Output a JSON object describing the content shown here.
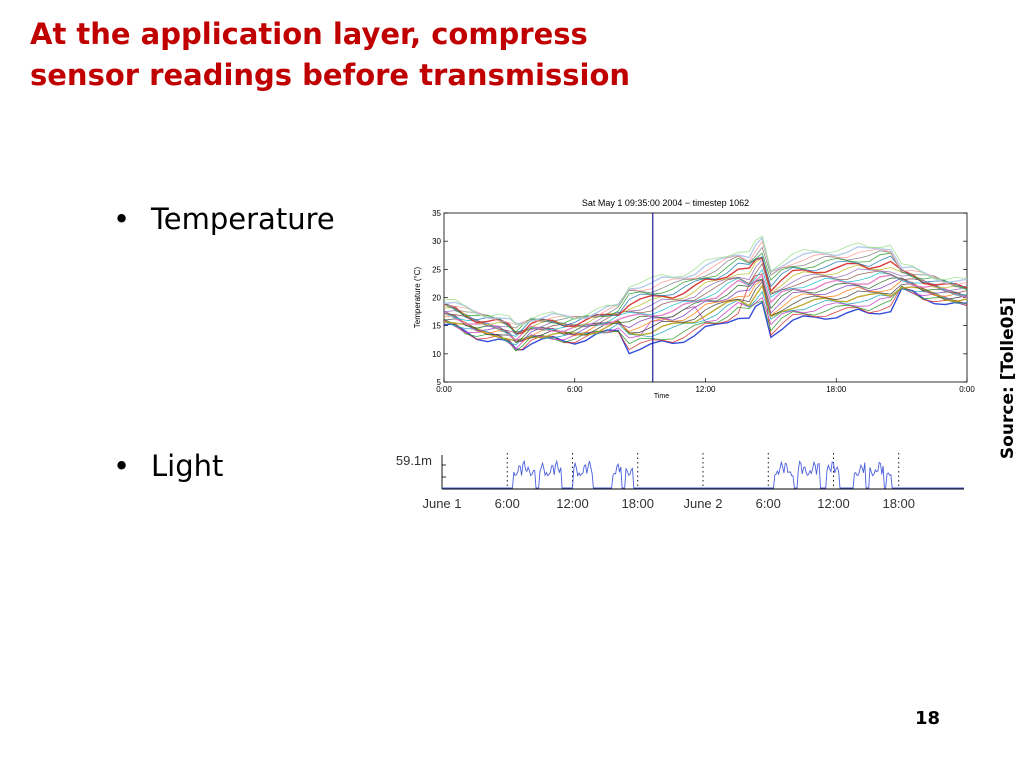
{
  "slide": {
    "title_line1": "At the application layer, compress",
    "title_line2": "sensor readings before transmission",
    "bullets": [
      "Temperature",
      "Light"
    ],
    "bullet_symbol": "•",
    "source": "Source: [Tolle05]",
    "page_number": "18",
    "title_color": "#c00000"
  },
  "chart_data": [
    {
      "type": "line",
      "title": "Sat May  1 09:35:00 2004 − timestep 1062",
      "ylabel": "Temperature (°C)",
      "xlabel": "Time",
      "x_ticks": [
        "0:00",
        "6:00",
        "12:00",
        "18:00",
        "0:00"
      ],
      "xlim_hours": [
        0,
        24
      ],
      "y_ticks": [
        5,
        10,
        15,
        20,
        25,
        30,
        35
      ],
      "ylim": [
        5,
        35
      ],
      "cursor_time_hours": 9.58,
      "x_hours": [
        0,
        0.5,
        1,
        1.5,
        2,
        2.5,
        3,
        3.3,
        3.6,
        4,
        4.5,
        5,
        5.5,
        6,
        6.5,
        7,
        7.5,
        8,
        8.5,
        9,
        9.5,
        10,
        10.5,
        11,
        11.5,
        12,
        12.5,
        13,
        13.5,
        14,
        14.3,
        14.6,
        15,
        15.5,
        16,
        16.5,
        17,
        17.5,
        18,
        18.5,
        19,
        19.5,
        20,
        20.5,
        21,
        21.5,
        22,
        22.5,
        23,
        23.5,
        24
      ],
      "base_series": [
        17.5,
        17.0,
        16.0,
        15.3,
        15.0,
        14.8,
        14.0,
        13.0,
        13.5,
        14.5,
        14.7,
        14.8,
        14.5,
        14.6,
        15.0,
        15.5,
        16.0,
        16.5,
        16.8,
        17.2,
        17.5,
        18.0,
        18.2,
        18.8,
        19.5,
        20.5,
        21.0,
        22.0,
        23.0,
        22.5,
        24.0,
        25.0,
        19.5,
        21.0,
        22.0,
        22.3,
        22.5,
        22.8,
        23.0,
        23.2,
        23.5,
        23.3,
        23.8,
        24.0,
        23.5,
        23.0,
        22.2,
        21.8,
        21.3,
        21.0,
        20.8
      ],
      "series_count": 22,
      "series_colors": [
        "#1f3bd6",
        "#d62d2d",
        "#2a9a2a",
        "#c43bc4",
        "#1aa5b8",
        "#b8a21a",
        "#444444",
        "#ff7f0e",
        "#7f3fbf",
        "#2b6f2b",
        "#e377c2",
        "#17becf",
        "#8c564b",
        "#9467bd",
        "#bcbd22",
        "#d62728",
        "#1f77b4",
        "#2ca02c",
        "#7f7f7f",
        "#ff9896",
        "#aec7e8",
        "#98df8a"
      ]
    },
    {
      "type": "line",
      "title": "",
      "y_label_value": "59.1m",
      "x_ticks": [
        "June 1",
        "6:00",
        "12:00",
        "18:00",
        "June 2",
        "6:00",
        "12:00",
        "18:00"
      ],
      "xlim_hours": [
        0,
        48
      ],
      "series_color": "#4a5fdd",
      "day_windows_hours": [
        [
          6.6,
          8.6
        ],
        [
          9.0,
          11.0
        ],
        [
          12.0,
          13.9
        ],
        [
          15.6,
          16.5
        ],
        [
          16.8,
          17.6
        ],
        [
          30.5,
          32.3
        ],
        [
          32.7,
          34.8
        ],
        [
          35.4,
          36.5
        ],
        [
          37.8,
          38.9
        ],
        [
          39.3,
          40.6
        ],
        [
          40.8,
          41.3
        ]
      ],
      "peak_fraction": 0.85
    }
  ]
}
